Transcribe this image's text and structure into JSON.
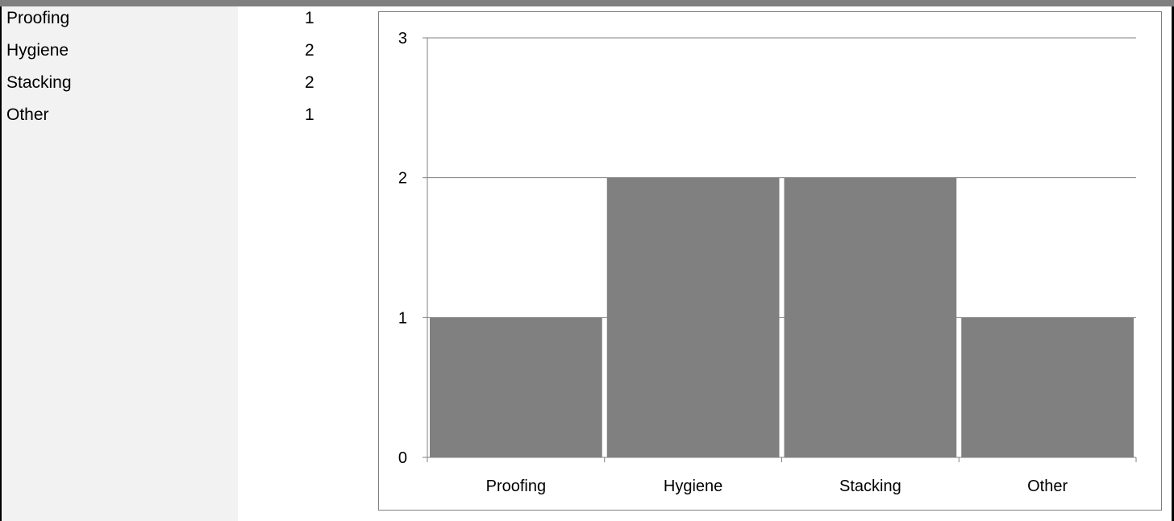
{
  "table": {
    "rows": [
      {
        "label": "Proofing",
        "value": "1"
      },
      {
        "label": "Hygiene",
        "value": "2"
      },
      {
        "label": "Stacking",
        "value": "2"
      },
      {
        "label": "Other",
        "value": "1"
      }
    ]
  },
  "chart_data": {
    "type": "bar",
    "categories": [
      "Proofing",
      "Hygiene",
      "Stacking",
      "Other"
    ],
    "values": [
      1,
      2,
      2,
      1
    ],
    "title": "",
    "xlabel": "",
    "ylabel": "",
    "ylim": [
      0,
      3
    ],
    "yticks": [
      "0",
      "1",
      "2",
      "3"
    ],
    "grid": true,
    "legend": "none",
    "bar_color": "#808080"
  }
}
